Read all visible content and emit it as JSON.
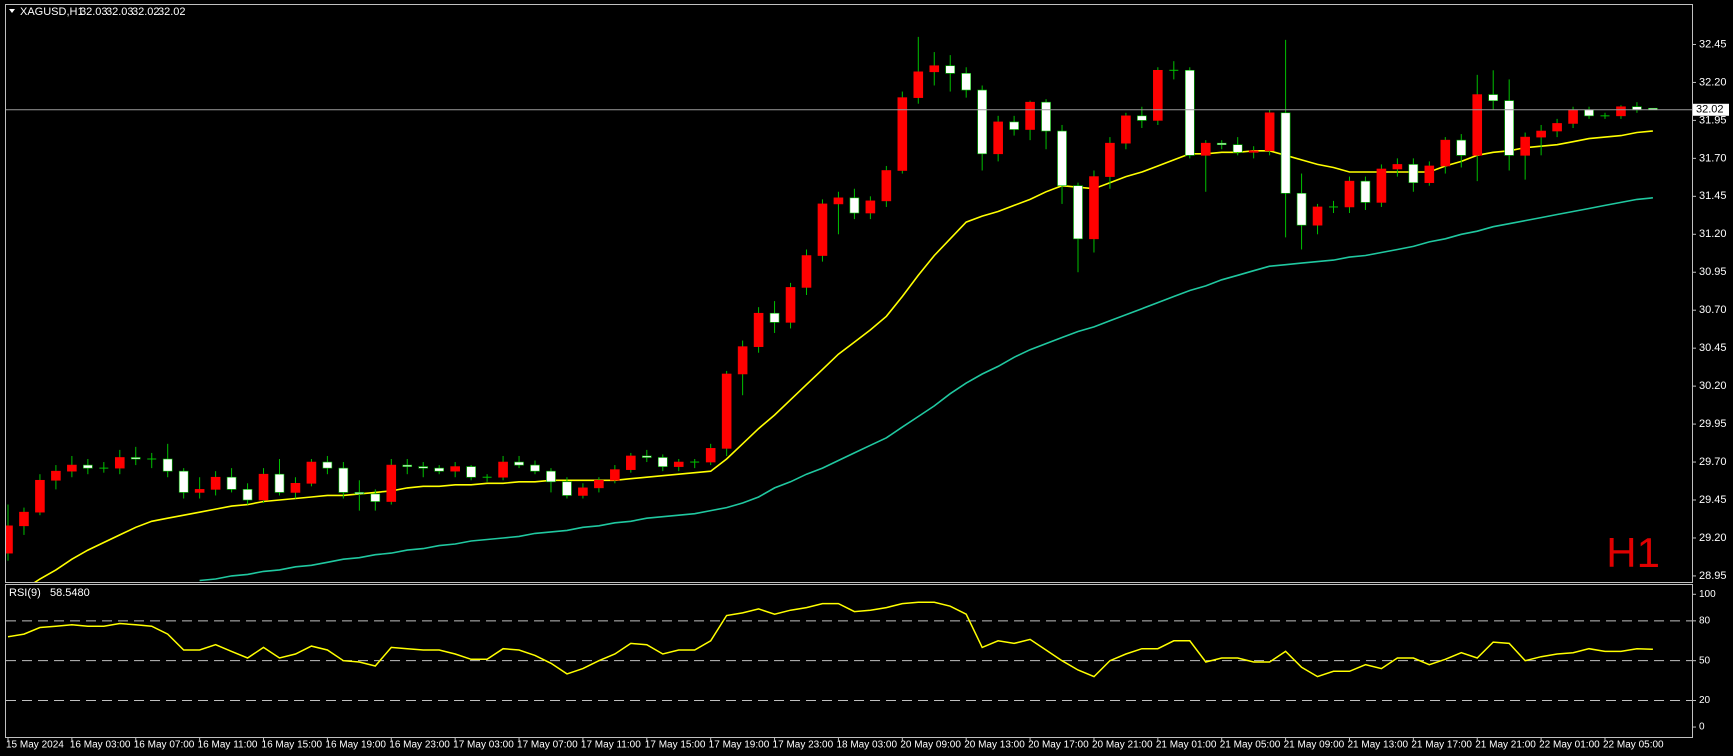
{
  "chart_data": [
    {
      "type": "candlestick",
      "title": "XAGUSD,H1",
      "watermark": "H1",
      "categories": [
        "15 May 2024",
        null,
        null,
        null,
        "16 May 03:00",
        null,
        null,
        null,
        "16 May 07:00",
        null,
        null,
        null,
        "16 May 11:00",
        null,
        null,
        null,
        "16 May 15:00",
        null,
        null,
        null,
        "16 May 19:00",
        null,
        null,
        null,
        "16 May 23:00",
        null,
        null,
        null,
        "17 May 03:00",
        null,
        null,
        null,
        "17 May 07:00",
        null,
        null,
        null,
        "17 May 11:00",
        null,
        null,
        null,
        "17 May 15:00",
        null,
        null,
        null,
        "17 May 19:00",
        null,
        null,
        null,
        "17 May 23:00",
        null,
        null,
        null,
        "18 May 03:00",
        null,
        null,
        null,
        "20 May 09:00",
        null,
        null,
        null,
        "20 May 13:00",
        null,
        null,
        null,
        "20 May 17:00",
        null,
        null,
        null,
        "20 May 21:00",
        null,
        null,
        null,
        "21 May 01:00",
        null,
        null,
        null,
        "21 May 05:00",
        null,
        null,
        null,
        "21 May 09:00",
        null,
        null,
        null,
        "21 May 13:00",
        null,
        null,
        null,
        "21 May 17:00",
        null,
        null,
        null,
        "21 May 21:00",
        null,
        null,
        null,
        "22 May 01:00",
        null,
        null,
        null,
        "22 May 05:00",
        null,
        null,
        null
      ],
      "open": [
        29.1,
        29.28,
        29.37,
        29.58,
        29.64,
        29.68,
        29.66,
        29.66,
        29.73,
        29.72,
        29.72,
        29.64,
        29.5,
        29.52,
        29.6,
        29.52,
        29.45,
        29.62,
        29.5,
        29.56,
        29.7,
        29.66,
        29.5,
        29.49,
        29.44,
        29.68,
        29.67,
        29.66,
        29.64,
        29.67,
        29.6,
        29.6,
        29.7,
        29.68,
        29.64,
        29.57,
        29.48,
        29.53,
        29.58,
        29.65,
        29.74,
        29.73,
        29.67,
        29.7,
        29.7,
        29.79,
        30.28,
        30.46,
        30.68,
        30.62,
        30.85,
        31.06,
        31.4,
        31.44,
        31.34,
        31.42,
        31.62,
        32.1,
        32.27,
        32.31,
        32.26,
        32.15,
        31.73,
        31.94,
        31.89,
        32.07,
        31.88,
        31.52,
        31.17,
        31.58,
        31.8,
        31.98,
        31.95,
        32.28,
        32.28,
        31.72,
        31.8,
        31.79,
        31.74,
        31.75,
        32.0,
        31.47,
        31.26,
        31.38,
        31.38,
        31.55,
        31.41,
        31.63,
        31.66,
        31.54,
        31.65,
        31.82,
        31.72,
        32.12,
        32.08,
        31.72,
        31.84,
        31.88,
        31.93,
        32.02,
        31.98,
        31.98,
        32.04,
        32.03
      ],
      "high": [
        29.42,
        29.4,
        29.62,
        29.68,
        29.74,
        29.72,
        29.7,
        29.78,
        29.8,
        29.76,
        29.82,
        29.66,
        29.6,
        29.64,
        29.66,
        29.56,
        29.66,
        29.72,
        29.6,
        29.72,
        29.74,
        29.7,
        29.58,
        29.52,
        29.72,
        29.72,
        29.7,
        29.68,
        29.7,
        29.68,
        29.62,
        29.74,
        29.74,
        29.71,
        29.66,
        29.6,
        29.56,
        29.6,
        29.68,
        29.76,
        29.78,
        29.75,
        29.72,
        29.72,
        29.82,
        30.3,
        30.5,
        30.72,
        30.76,
        30.88,
        31.1,
        31.43,
        31.48,
        31.5,
        31.45,
        31.65,
        32.14,
        32.5,
        32.4,
        32.38,
        32.3,
        32.18,
        31.98,
        31.98,
        32.08,
        32.09,
        31.92,
        31.54,
        31.62,
        31.84,
        32.0,
        32.04,
        32.3,
        32.34,
        32.3,
        31.82,
        31.82,
        31.84,
        31.78,
        32.02,
        32.48,
        31.6,
        31.4,
        31.42,
        31.58,
        31.58,
        31.66,
        31.7,
        31.7,
        31.68,
        31.84,
        31.86,
        32.25,
        32.28,
        32.22,
        31.87,
        31.92,
        31.96,
        32.04,
        32.04,
        32.0,
        32.05,
        32.07,
        32.03
      ],
      "low": [
        29.05,
        29.22,
        29.35,
        29.52,
        29.6,
        29.62,
        29.63,
        29.62,
        29.68,
        29.66,
        29.6,
        29.46,
        29.46,
        29.48,
        29.5,
        29.42,
        29.43,
        29.48,
        29.46,
        29.54,
        29.62,
        29.46,
        29.38,
        29.38,
        29.42,
        29.62,
        29.6,
        29.62,
        29.6,
        29.58,
        29.57,
        29.58,
        29.66,
        29.62,
        29.5,
        29.46,
        29.46,
        29.5,
        29.56,
        29.63,
        29.7,
        29.64,
        29.64,
        29.66,
        29.68,
        29.74,
        30.14,
        30.42,
        30.55,
        30.58,
        30.8,
        31.02,
        31.2,
        31.3,
        31.3,
        31.38,
        31.6,
        32.06,
        32.18,
        32.14,
        32.1,
        31.62,
        31.68,
        31.85,
        31.82,
        31.76,
        31.4,
        30.95,
        31.08,
        31.5,
        31.76,
        31.9,
        31.92,
        32.22,
        31.7,
        31.48,
        31.76,
        31.72,
        31.7,
        31.72,
        31.18,
        31.1,
        31.2,
        31.34,
        31.34,
        31.36,
        31.38,
        31.58,
        31.48,
        31.52,
        31.6,
        31.64,
        31.55,
        32.02,
        31.62,
        31.56,
        31.72,
        31.84,
        31.9,
        31.96,
        31.96,
        31.96,
        32.0,
        32.02
      ],
      "close": [
        29.28,
        29.37,
        29.58,
        29.64,
        29.68,
        29.66,
        29.66,
        29.73,
        29.72,
        29.72,
        29.64,
        29.5,
        29.52,
        29.6,
        29.52,
        29.45,
        29.62,
        29.5,
        29.56,
        29.7,
        29.66,
        29.5,
        29.49,
        29.44,
        29.68,
        29.67,
        29.66,
        29.64,
        29.67,
        29.6,
        29.6,
        29.7,
        29.68,
        29.64,
        29.57,
        29.48,
        29.53,
        29.58,
        29.65,
        29.74,
        29.73,
        29.67,
        29.7,
        29.7,
        29.79,
        30.28,
        30.46,
        30.68,
        30.62,
        30.85,
        31.06,
        31.4,
        31.44,
        31.34,
        31.42,
        31.62,
        32.1,
        32.27,
        32.31,
        32.26,
        32.15,
        31.73,
        31.94,
        31.89,
        32.07,
        31.88,
        31.52,
        31.17,
        31.58,
        31.8,
        31.98,
        31.95,
        32.28,
        32.28,
        31.72,
        31.8,
        31.79,
        31.74,
        31.75,
        32.0,
        31.47,
        31.26,
        31.38,
        31.38,
        31.55,
        31.41,
        31.63,
        31.66,
        31.54,
        31.65,
        31.82,
        31.72,
        32.12,
        32.08,
        31.72,
        31.84,
        31.88,
        31.93,
        32.02,
        31.98,
        31.98,
        32.04,
        32.02,
        32.02
      ],
      "up_color": "#ff0000",
      "down_color": "#ffffff",
      "wick_color": "#00c000",
      "lines": [
        {
          "color": "#ffff00",
          "values": [
            28.8,
            28.86,
            28.93,
            28.99,
            29.06,
            29.12,
            29.17,
            29.22,
            29.27,
            29.31,
            29.33,
            29.35,
            29.37,
            29.39,
            29.41,
            29.42,
            29.44,
            29.45,
            29.46,
            29.47,
            29.48,
            29.48,
            29.49,
            29.5,
            29.51,
            29.53,
            29.54,
            29.54,
            29.55,
            29.55,
            29.56,
            29.56,
            29.57,
            29.57,
            29.58,
            29.58,
            29.58,
            29.58,
            29.58,
            29.59,
            29.6,
            29.61,
            29.62,
            29.63,
            29.64,
            29.72,
            29.82,
            29.92,
            30.01,
            30.11,
            30.21,
            30.31,
            30.41,
            30.49,
            30.57,
            30.66,
            30.79,
            30.93,
            31.06,
            31.17,
            31.28,
            31.32,
            31.35,
            31.39,
            31.43,
            31.48,
            31.52,
            31.51,
            31.5,
            31.54,
            31.58,
            31.61,
            31.65,
            31.69,
            31.73,
            31.73,
            31.74,
            31.74,
            31.75,
            31.75,
            31.72,
            31.69,
            31.66,
            31.64,
            31.61,
            31.61,
            31.61,
            31.61,
            31.61,
            31.61,
            31.65,
            31.68,
            31.72,
            31.74,
            31.75,
            31.77,
            31.78,
            31.79,
            31.81,
            31.83,
            31.84,
            31.85,
            31.87,
            31.88
          ]
        },
        {
          "color": "#20c8a0",
          "values": [
            null,
            null,
            null,
            null,
            null,
            null,
            null,
            null,
            null,
            null,
            null,
            null,
            28.92,
            28.93,
            28.95,
            28.96,
            28.98,
            28.99,
            29.01,
            29.02,
            29.04,
            29.06,
            29.07,
            29.09,
            29.1,
            29.12,
            29.13,
            29.15,
            29.16,
            29.18,
            29.19,
            29.2,
            29.21,
            29.23,
            29.24,
            29.25,
            29.27,
            29.28,
            29.3,
            29.31,
            29.33,
            29.34,
            29.35,
            29.36,
            29.38,
            29.4,
            29.43,
            29.47,
            29.53,
            29.57,
            29.62,
            29.66,
            29.71,
            29.76,
            29.81,
            29.86,
            29.93,
            30.0,
            30.07,
            30.15,
            30.22,
            30.28,
            30.33,
            30.39,
            30.44,
            30.48,
            30.52,
            30.56,
            30.59,
            30.63,
            30.67,
            30.71,
            30.75,
            30.79,
            30.83,
            30.86,
            30.9,
            30.93,
            30.96,
            30.99,
            31.0,
            31.01,
            31.02,
            31.03,
            31.05,
            31.06,
            31.08,
            31.1,
            31.12,
            31.15,
            31.17,
            31.2,
            31.22,
            31.25,
            31.27,
            31.29,
            31.31,
            31.33,
            31.35,
            31.37,
            31.39,
            31.41,
            31.43,
            31.44
          ]
        }
      ],
      "last_price": 32.02,
      "ylim": [
        28.91,
        32.71
      ],
      "yticks": [
        28.95,
        {
          "value": 29.2,
          "label": "29.20"
        },
        29.45,
        {
          "value": 29.7,
          "label": "29.70"
        },
        29.95,
        {
          "value": 30.2,
          "label": "30.20"
        },
        30.45,
        {
          "value": 30.7,
          "label": "30.70"
        },
        30.95,
        {
          "value": 31.2,
          "label": "31.20"
        },
        31.45,
        {
          "value": 31.7,
          "label": "31.70"
        },
        31.95,
        {
          "value": 32.2,
          "label": "32.20"
        },
        32.45
      ]
    },
    {
      "type": "line",
      "title": "RSI(9)",
      "current": 58.548,
      "current_label": "58.5480",
      "color": "#ffff00",
      "values": [
        68,
        70,
        75,
        76,
        77,
        76,
        76,
        78,
        77,
        76,
        70,
        58,
        58,
        62,
        57,
        52,
        60,
        52,
        55,
        61,
        58,
        50,
        49,
        46,
        60,
        59,
        58,
        58,
        55,
        51,
        51,
        59,
        58,
        54,
        48,
        40,
        44,
        50,
        55,
        63,
        62,
        55,
        58,
        58,
        65,
        84,
        86,
        89,
        85,
        88,
        90,
        93,
        93,
        87,
        88,
        90,
        93,
        94,
        94,
        91,
        85,
        60,
        65,
        63,
        66,
        58,
        50,
        43,
        38,
        50,
        55,
        59,
        59,
        65,
        65,
        49,
        52,
        52,
        49,
        49,
        57,
        45,
        38,
        42,
        42,
        47,
        44,
        52,
        52,
        47,
        51,
        56,
        52,
        64,
        63,
        50,
        53,
        55,
        56,
        59,
        57,
        57,
        59,
        58.548
      ],
      "levels": [
        20,
        50,
        80
      ],
      "ylim": [
        -7.5,
        107
      ],
      "yticks": [
        0,
        20,
        50,
        80,
        100
      ]
    }
  ]
}
